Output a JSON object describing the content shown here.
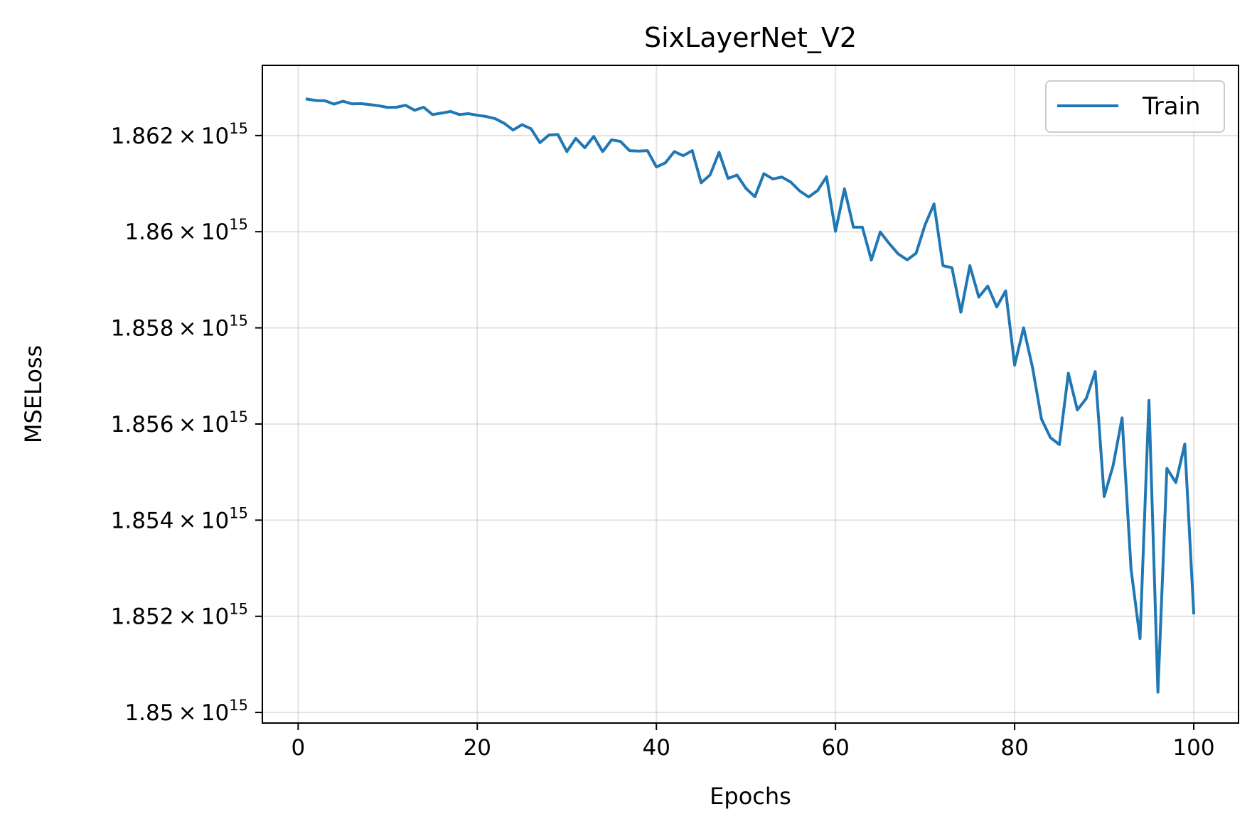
{
  "chart_data": {
    "type": "line",
    "title": "SixLayerNet_V2",
    "xlabel": "Epochs",
    "ylabel": "MSELoss",
    "xlim": [
      -4,
      105
    ],
    "ylim": [
      1849780000000000.0,
      1863460000000000.0
    ],
    "x_ticks": [
      0,
      20,
      40,
      60,
      80,
      100
    ],
    "y_ticks": [
      1850000000000000.0,
      1852000000000000.0,
      1854000000000000.0,
      1856000000000000.0,
      1858000000000000.0,
      1860000000000000.0,
      1862000000000000.0
    ],
    "y_tick_labels": [
      {
        "base": "1.85",
        "times": "×",
        "ten": "10",
        "exp": "15"
      },
      {
        "base": "1.852",
        "times": "×",
        "ten": "10",
        "exp": "15"
      },
      {
        "base": "1.854",
        "times": "×",
        "ten": "10",
        "exp": "15"
      },
      {
        "base": "1.856",
        "times": "×",
        "ten": "10",
        "exp": "15"
      },
      {
        "base": "1.858",
        "times": "×",
        "ten": "10",
        "exp": "15"
      },
      {
        "base": "1.86",
        "times": "×",
        "ten": "10",
        "exp": "15"
      },
      {
        "base": "1.862",
        "times": "×",
        "ten": "10",
        "exp": "15"
      }
    ],
    "grid": true,
    "legend_position": "top-right",
    "series": [
      {
        "name": "Train",
        "color": "#1f77b4",
        "x": [
          1,
          2,
          3,
          4,
          5,
          6,
          7,
          8,
          9,
          10,
          11,
          12,
          13,
          14,
          15,
          16,
          17,
          18,
          19,
          20,
          21,
          22,
          23,
          24,
          25,
          26,
          27,
          28,
          29,
          30,
          31,
          32,
          33,
          34,
          35,
          36,
          37,
          38,
          39,
          40,
          41,
          42,
          43,
          44,
          45,
          46,
          47,
          48,
          49,
          50,
          51,
          52,
          53,
          54,
          55,
          56,
          57,
          58,
          59,
          60,
          61,
          62,
          63,
          64,
          65,
          66,
          67,
          68,
          69,
          70,
          71,
          72,
          73,
          74,
          75,
          76,
          77,
          78,
          79,
          80,
          81,
          82,
          83,
          84,
          85,
          86,
          87,
          88,
          89,
          90,
          91,
          92,
          93,
          94,
          95,
          96,
          97,
          98,
          99,
          100
        ],
        "y": [
          1862758000000000.0,
          1862729000000000.0,
          1862724000000000.0,
          1862654000000000.0,
          1862714000000000.0,
          1862659000000000.0,
          1862664000000000.0,
          1862644000000000.0,
          1862619000000000.0,
          1862585000000000.0,
          1862590000000000.0,
          1862629000000000.0,
          1862525000000000.0,
          1862589000000000.0,
          1862436000000000.0,
          1862466000000000.0,
          1862501000000000.0,
          1862436000000000.0,
          1862456000000000.0,
          1862421000000000.0,
          1862396000000000.0,
          1862351000000000.0,
          1862255000000000.0,
          1862115000000000.0,
          1862226000000000.0,
          1862141000000000.0,
          1861851000000000.0,
          1862011000000000.0,
          1862021000000000.0,
          1861666000000000.0,
          1861941000000000.0,
          1861746000000000.0,
          1861981000000000.0,
          1861666000000000.0,
          1861911000000000.0,
          1861876000000000.0,
          1861686000000000.0,
          1861676000000000.0,
          1861686000000000.0,
          1861347000000000.0,
          1861432000000000.0,
          1861666000000000.0,
          1861581000000000.0,
          1861686000000000.0,
          1861017000000000.0,
          1861182000000000.0,
          1861651000000000.0,
          1861107000000000.0,
          1861177000000000.0,
          1860902000000000.0,
          1860727000000000.0,
          1861207000000000.0,
          1861097000000000.0,
          1861137000000000.0,
          1861032000000000.0,
          1860847000000000.0,
          1860722000000000.0,
          1860857000000000.0,
          1861142000000000.0,
          1860008000000000.0,
          1860892000000000.0,
          1860093000000000.0,
          1860093000000000.0,
          1859409000000000.0,
          1859993000000000.0,
          1859753000000000.0,
          1859538000000000.0,
          1859414000000000.0,
          1859553000000000.0,
          1860143000000000.0,
          1860577000000000.0,
          1859294000000000.0,
          1859249000000000.0,
          1858325000000000.0,
          1859294000000000.0,
          1858640000000000.0,
          1858869000000000.0,
          1858435000000000.0,
          1858770000000000.0,
          1857226000000000.0,
          1858000000000000.0,
          1857176000000000.0,
          1856102000000000.0,
          1855717000000000.0,
          1855572000000000.0,
          1857056000000000.0,
          1856292000000000.0,
          1856531000000000.0,
          1857091000000000.0,
          1854493000000000.0,
          1855137000000000.0,
          1856127000000000.0,
          1852980000000000.0,
          1851536000000000.0,
          1856491000000000.0,
          1850422000000000.0,
          1855077000000000.0,
          1854783000000000.0,
          1855582000000000.0,
          1852071000000000.0
        ]
      }
    ]
  }
}
